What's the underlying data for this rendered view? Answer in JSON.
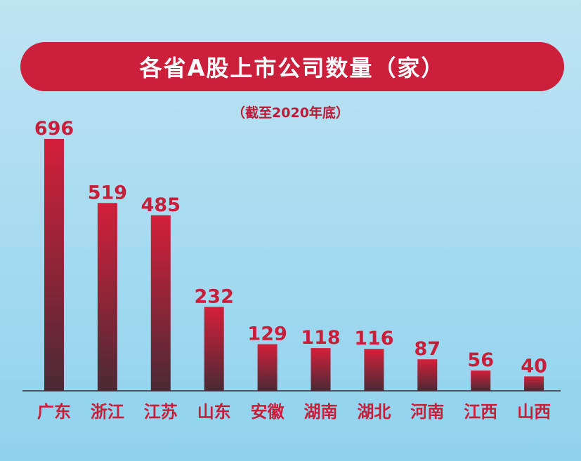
{
  "title": "各省A股上市公司数量（家）",
  "subtitle": "（截至2020年底）",
  "colors": {
    "bar_top": "#d41f3a",
    "bar_bottom": "#4a2a35",
    "value_label": "#c81e3a",
    "category_label": "#c81e3a",
    "banner": "#cc1f3c"
  },
  "chart_data": {
    "type": "bar",
    "title": "各省A股上市公司数量（家）",
    "subtitle": "（截至2020年底）",
    "categories": [
      "广东",
      "浙江",
      "江苏",
      "山东",
      "安徽",
      "湖南",
      "湖北",
      "河南",
      "江西",
      "山西"
    ],
    "values": [
      696,
      519,
      485,
      232,
      129,
      118,
      116,
      87,
      56,
      40
    ],
    "ylim": [
      0,
      696
    ],
    "grid": false,
    "legend": "none"
  }
}
